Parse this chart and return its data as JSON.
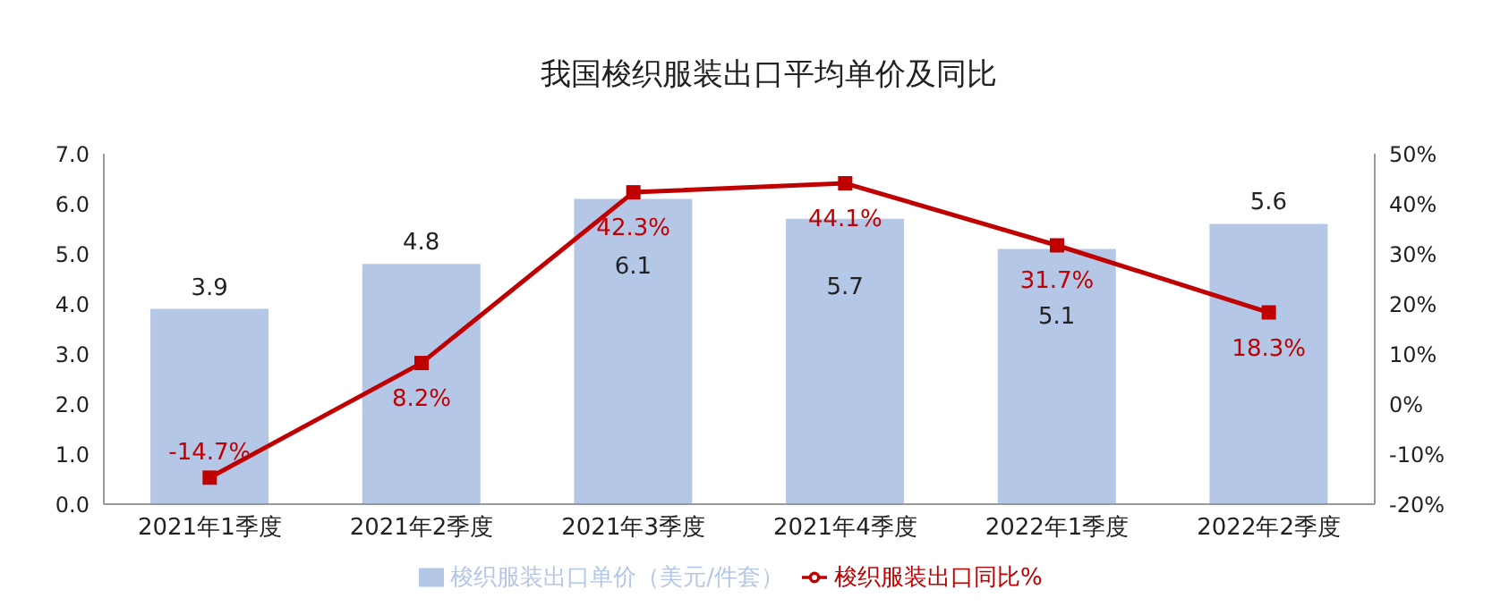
{
  "chart_data": {
    "type": "bar",
    "title": "我国梭织服装出口平均单价及同比",
    "categories": [
      "2021年1季度",
      "2021年2季度",
      "2021年3季度",
      "2021年4季度",
      "2022年1季度",
      "2022年2季度"
    ],
    "series": [
      {
        "name": "梭织服装出口单价（美元/件套）",
        "color": "#b4c7e7",
        "values": [
          3.9,
          4.8,
          6.1,
          5.7,
          5.1,
          5.6
        ],
        "value_labels": [
          "3.9",
          "4.8",
          "6.1",
          "5.7",
          "5.1",
          "5.6"
        ]
      },
      {
        "name": "梭织服装出口同比%",
        "type": "line",
        "axis": "y2",
        "color": "#c00000",
        "marker": "square",
        "values": [
          -14.7,
          8.2,
          42.3,
          44.1,
          31.7,
          18.3
        ],
        "value_labels": [
          "-14.7%",
          "8.2%",
          "42.3%",
          "44.1%",
          "31.7%",
          "18.3%"
        ]
      }
    ],
    "ylim": [
      0,
      7
    ],
    "yticks": [
      {
        "value": 0,
        "label": "0.0"
      },
      {
        "value": 1,
        "label": "1.0"
      },
      {
        "value": 2,
        "label": "2.0"
      },
      {
        "value": 3,
        "label": "3.0"
      },
      {
        "value": 4,
        "label": "4.0"
      },
      {
        "value": 5,
        "label": "5.0"
      },
      {
        "value": 6,
        "label": "6.0"
      },
      {
        "value": 7,
        "label": "7.0"
      }
    ],
    "y2lim": [
      -20,
      50
    ],
    "y2ticks": [
      {
        "value": -20,
        "label": "-20%"
      },
      {
        "value": -10,
        "label": "-10%"
      },
      {
        "value": 0,
        "label": "0%"
      },
      {
        "value": 10,
        "label": "10%"
      },
      {
        "value": 20,
        "label": "20%"
      },
      {
        "value": 30,
        "label": "30%"
      },
      {
        "value": 40,
        "label": "40%"
      },
      {
        "value": 50,
        "label": "50%"
      }
    ],
    "grid": false,
    "legend": "bottom"
  }
}
